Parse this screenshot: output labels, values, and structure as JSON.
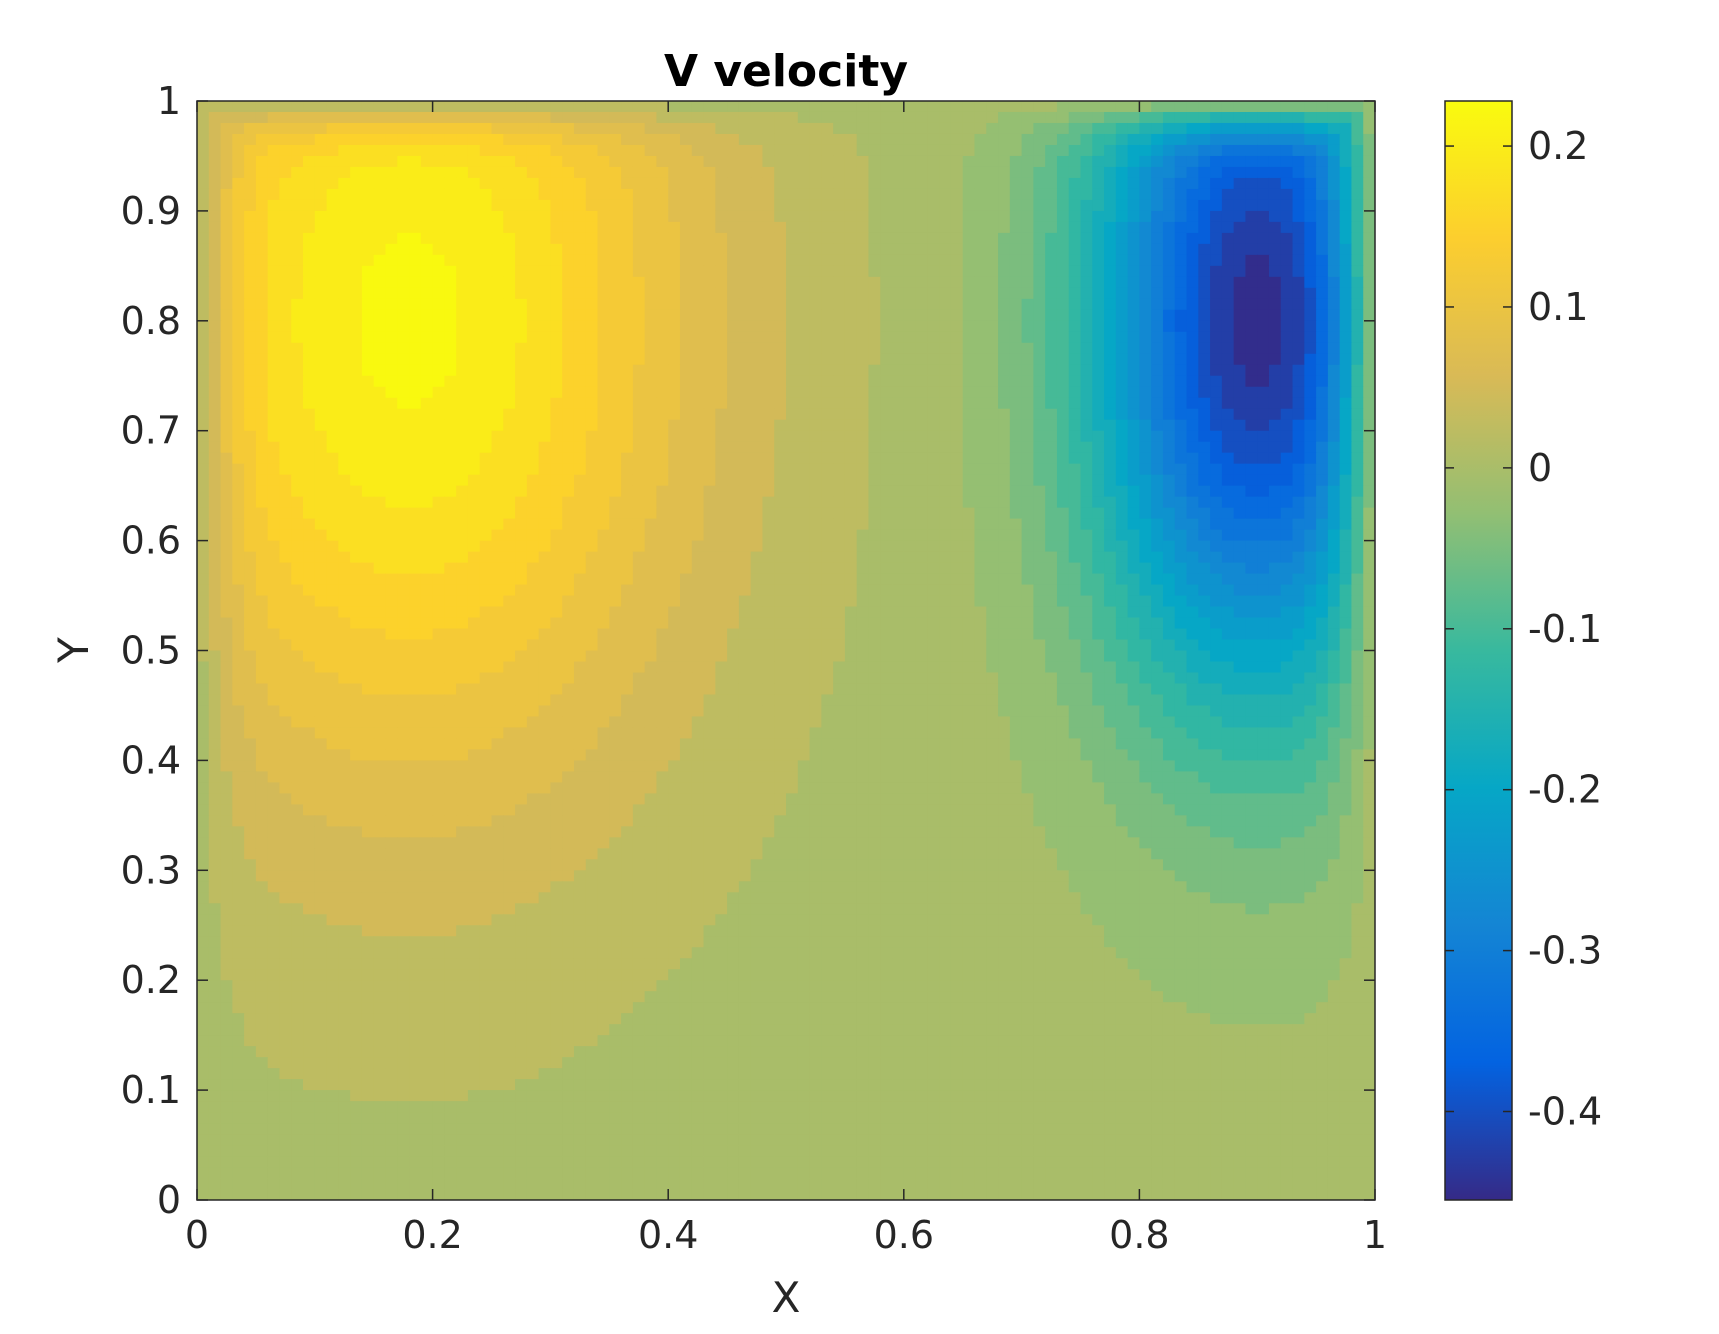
{
  "chart_data": {
    "type": "heatmap",
    "subtype": "filled-contour",
    "title": "V velocity",
    "xlabel": "X",
    "ylabel": "Y",
    "xlim": [
      0,
      1
    ],
    "ylim": [
      0,
      1
    ],
    "x_ticks": [
      "0",
      "0.2",
      "0.4",
      "0.6",
      "0.8",
      "1"
    ],
    "x_tick_values": [
      0,
      0.2,
      0.4,
      0.6,
      0.8,
      1
    ],
    "y_ticks": [
      "0",
      "0.1",
      "0.2",
      "0.3",
      "0.4",
      "0.5",
      "0.6",
      "0.7",
      "0.8",
      "0.9",
      "1"
    ],
    "y_tick_values": [
      0,
      0.1,
      0.2,
      0.3,
      0.4,
      0.5,
      0.6,
      0.7,
      0.8,
      0.9,
      1
    ],
    "colorbar": {
      "colormap": "parula",
      "clim": [
        -0.455,
        0.228
      ],
      "ticks": [
        "-0.4",
        "-0.3",
        "-0.2",
        "-0.1",
        "0",
        "0.1",
        "0.2"
      ],
      "tick_values": [
        -0.4,
        -0.3,
        -0.2,
        -0.1,
        0,
        0.1,
        0.2
      ],
      "level_step": 0.025
    },
    "features": [
      {
        "kind": "maximum",
        "x": 0.18,
        "y": 0.8,
        "value": 0.22
      },
      {
        "kind": "minimum",
        "x": 0.9,
        "y": 0.8,
        "value": -0.45
      }
    ],
    "background_value": 0,
    "grid": false,
    "colors": {
      "parula_dark": "#352A87",
      "parula_blue": "#0F5CDD",
      "parula_cyan": "#05B7BC",
      "parula_green": "#65BE62",
      "parula_olive": "#D6BA32",
      "parula_orange": "#FFAA45",
      "parula_yellow": "#F9FB0E"
    }
  }
}
